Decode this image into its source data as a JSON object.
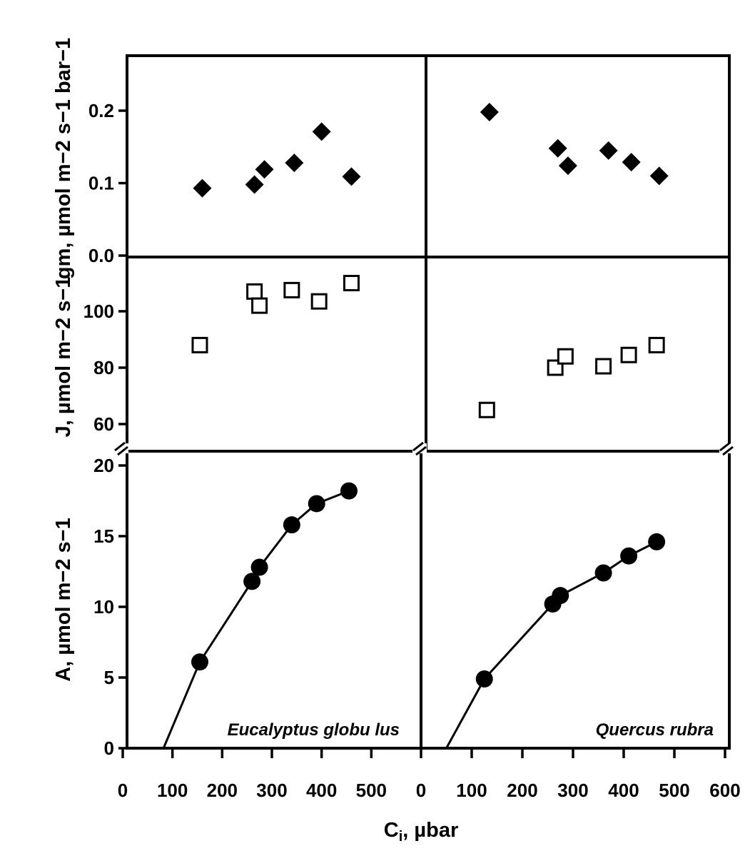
{
  "figure": {
    "x_axis_title": "Ci, µbar",
    "x_axis_title_main": "C",
    "x_axis_title_sub": "i",
    "x_axis_title_unit": ", µbar",
    "y_titles": {
      "gm": "gm, µmol m−2 s−1 bar−1",
      "j": "J, µmol m−2 s−1",
      "a": "A, µmol m−2 s−1"
    },
    "panels": [
      {
        "species": "Eucalyptus globu lus"
      },
      {
        "species": "Quercus rubra"
      }
    ],
    "colors": {
      "ink": "#000000",
      "background": "#ffffff"
    }
  },
  "chart_data": [
    {
      "type": "scatter",
      "panel": "top-left",
      "marker": "filled-diamond",
      "x": [
        160,
        265,
        285,
        345,
        400,
        460
      ],
      "y": [
        0.093,
        0.098,
        0.119,
        0.128,
        0.171,
        0.109
      ],
      "ylim": [
        0.0,
        0.25
      ],
      "yticks": [
        "0.0",
        "0.1",
        "0.2"
      ],
      "xlim": [
        0,
        600
      ]
    },
    {
      "type": "scatter",
      "panel": "top-right",
      "marker": "filled-diamond",
      "x": [
        135,
        270,
        290,
        370,
        415,
        470
      ],
      "y": [
        0.198,
        0.148,
        0.124,
        0.145,
        0.129,
        0.11
      ],
      "ylim": [
        0.0,
        0.25
      ],
      "xlim": [
        0,
        600
      ]
    },
    {
      "type": "scatter",
      "panel": "middle-left",
      "marker": "open-square",
      "x": [
        155,
        265,
        275,
        340,
        395,
        460
      ],
      "y": [
        88,
        107,
        102,
        107.5,
        103.5,
        110
      ],
      "ylim": [
        58,
        115
      ],
      "yticks": [
        "60",
        "80",
        "100"
      ],
      "xlim": [
        0,
        600
      ]
    },
    {
      "type": "scatter",
      "panel": "middle-right",
      "marker": "open-square",
      "x": [
        130,
        265,
        285,
        360,
        410,
        465
      ],
      "y": [
        65,
        80,
        84,
        80.5,
        84.5,
        88
      ],
      "ylim": [
        58,
        115
      ],
      "xlim": [
        0,
        600
      ]
    },
    {
      "type": "line",
      "panel": "bottom-left",
      "marker": "filled-circle",
      "x": [
        155,
        260,
        275,
        340,
        390,
        455
      ],
      "y": [
        6.1,
        11.8,
        12.8,
        15.8,
        17.3,
        18.2
      ],
      "fit_line": {
        "x": [
          82,
          155,
          260,
          275,
          340,
          390,
          455
        ],
        "y": [
          0,
          6.1,
          11.8,
          12.8,
          15.8,
          17.3,
          18.2
        ]
      },
      "ylim": [
        0,
        21
      ],
      "yticks": [
        "0",
        "5",
        "10",
        "15",
        "20"
      ],
      "xlim": [
        0,
        600
      ],
      "xticks": [
        "0",
        "100",
        "200",
        "300",
        "400",
        "500"
      ]
    },
    {
      "type": "line",
      "panel": "bottom-right",
      "marker": "filled-circle",
      "x": [
        125,
        260,
        275,
        360,
        410,
        465
      ],
      "y": [
        4.9,
        10.2,
        10.8,
        12.4,
        13.6,
        14.6
      ],
      "fit_line": {
        "x": [
          50,
          125,
          260,
          275,
          360,
          410,
          465
        ],
        "y": [
          0,
          4.9,
          10.2,
          10.8,
          12.4,
          13.6,
          14.6
        ]
      },
      "ylim": [
        0,
        21
      ],
      "xlim": [
        0,
        600
      ],
      "xticks": [
        "0",
        "100",
        "200",
        "300",
        "400",
        "500",
        "600"
      ]
    }
  ]
}
